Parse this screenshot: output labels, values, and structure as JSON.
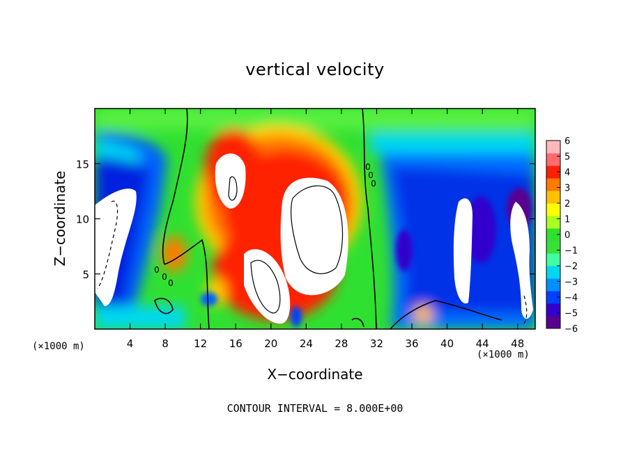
{
  "chart_data": {
    "type": "heatmap",
    "title": "vertical velocity",
    "xlabel": "X−coordinate",
    "ylabel": "Z−coordinate",
    "x_unit_label": "(×1000 m)",
    "contour_note": "CONTOUR INTERVAL = 8.000E+00",
    "xlim": [
      0,
      50
    ],
    "ylim": [
      0,
      20
    ],
    "x_ticks": [
      4,
      8,
      12,
      16,
      20,
      24,
      28,
      32,
      36,
      40,
      44,
      48
    ],
    "y_ticks": [
      5,
      10,
      15
    ],
    "colorbar": {
      "range": [
        -6,
        6
      ],
      "ticks": [
        6,
        5,
        4,
        3,
        2,
        1,
        0,
        -1,
        -2,
        -3,
        -4,
        -5,
        -6
      ],
      "tick_labels": [
        "6",
        "5",
        "4",
        "3",
        "2",
        "1",
        "0",
        "−1",
        "−2",
        "−3",
        "−4",
        "−5",
        "−6"
      ],
      "colors": [
        "#5a0090",
        "#3300cc",
        "#0040ff",
        "#0090ff",
        "#00d8f0",
        "#40ffa0",
        "#38e038",
        "#30e030",
        "#a8ff20",
        "#ffff00",
        "#ffc000",
        "#ff7a00",
        "#ff2000",
        "#ff6a70",
        "#ffb8b8"
      ]
    },
    "contour_labels": [
      "0",
      "0",
      "0",
      "0",
      "0",
      "0"
    ]
  }
}
